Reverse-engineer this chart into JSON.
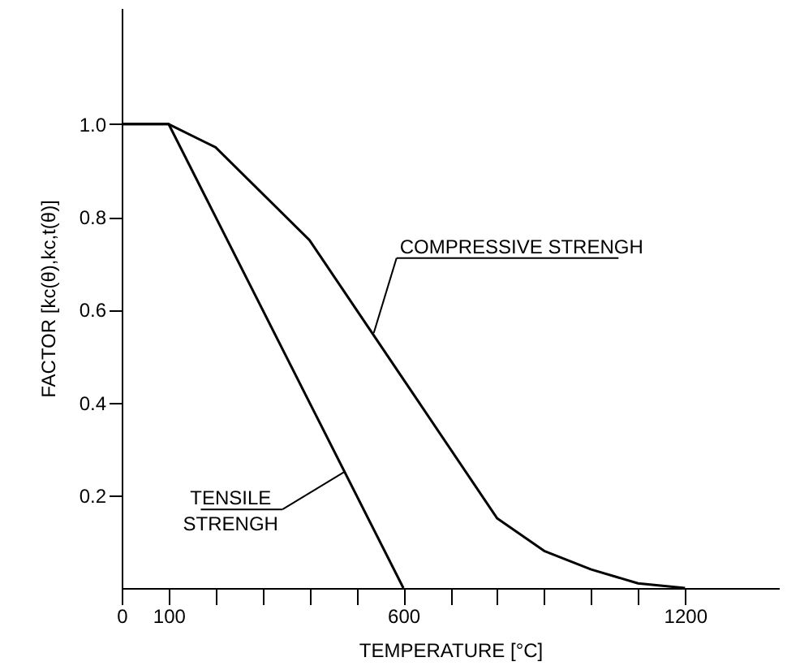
{
  "chart_data": {
    "type": "line",
    "xlabel": "TEMPERATURE [°C]",
    "ylabel": "FACTOR [kc(θ),kc,t(θ)]",
    "series": [
      {
        "color": "#000000",
        "x": [
          0,
          100,
          200,
          400,
          800,
          900,
          1000,
          1100,
          1200
        ],
        "values": [
          1,
          1,
          0.95,
          0.75,
          0.15,
          0.08,
          0.04,
          0.01,
          0
        ]
      },
      {
        "color": "#000000",
        "x": [
          0,
          100,
          600
        ],
        "values": [
          1,
          1,
          0
        ]
      }
    ],
    "xlim": [
      0,
      1400
    ],
    "ylim": [
      0,
      1.25
    ],
    "xticks": [
      {
        "value": 0,
        "label": "0"
      },
      100,
      {
        "value": 200,
        "label": null
      },
      {
        "value": 300,
        "label": null
      },
      {
        "value": 400,
        "label": null
      },
      {
        "value": 500,
        "label": null
      },
      600,
      {
        "value": 700,
        "label": null
      },
      {
        "value": 800,
        "label": null
      },
      {
        "value": 900,
        "label": null
      },
      {
        "value": 1000,
        "label": null
      },
      {
        "value": 1100,
        "label": null
      },
      1200
    ],
    "yticks": [
      0.2,
      0.4,
      0.6,
      0.8,
      {
        "value": 1,
        "label": "1.0"
      }
    ],
    "annotations": [
      {
        "text": "COMPRESSIVE STRENGH",
        "x": 537,
        "y": 0.55
      },
      {
        "text": "TENSILE\nSTRENGH",
        "x": 474,
        "y": 0.25
      }
    ],
    "marker": "none",
    "line_style": "solid",
    "grid": false
  }
}
